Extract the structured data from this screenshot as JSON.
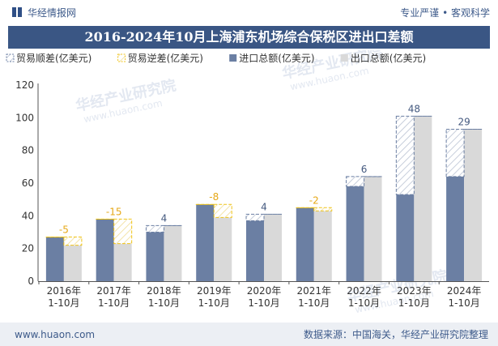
{
  "header": {
    "brand_name": "华经情报网",
    "tagline": "专业严谨 • 客观科学"
  },
  "title": "2016-2024年10月上海浦东机场综合保税区进出口差额",
  "watermark": "华经产业研究院",
  "watermark_url": "www.huaon.com",
  "footer": {
    "website": "www.huaon.com",
    "source": "数据来源：中国海关，华经产业研究院整理"
  },
  "colors": {
    "import": "#6b7fa3",
    "export": "#d9d9d9",
    "surplus_stroke": "#6b7fa3",
    "deficit_stroke": "#f0c419",
    "surplus_label": "#44597f",
    "deficit_label": "#e6a817"
  },
  "chart_data": {
    "type": "bar",
    "categories": [
      "2016年\n1-10月",
      "2017年\n1-10月",
      "2018年\n1-10月",
      "2019年\n1-10月",
      "2020年\n1-10月",
      "2021年\n1-10月",
      "2022年\n1-10月",
      "2023年\n1-10月",
      "2024年\n1-10月"
    ],
    "series": [
      {
        "name": "贸易顺差(亿美元)",
        "kind": "surplus"
      },
      {
        "name": "贸易逆差(亿美元)",
        "kind": "deficit"
      },
      {
        "name": "进口总额(亿美元)",
        "values": [
          27,
          38,
          30,
          47,
          37,
          45,
          58,
          53,
          64
        ]
      },
      {
        "name": "出口总额(亿美元)",
        "values": [
          22,
          23,
          34,
          39,
          41,
          43,
          64,
          101,
          93
        ]
      }
    ],
    "balance": [
      -5,
      -15,
      4,
      -8,
      4,
      -2,
      6,
      48,
      29
    ],
    "ylim": [
      0,
      120
    ],
    "yticks": [
      0,
      20,
      40,
      60,
      80,
      100,
      120
    ],
    "legend_position": "top",
    "grid": false
  }
}
